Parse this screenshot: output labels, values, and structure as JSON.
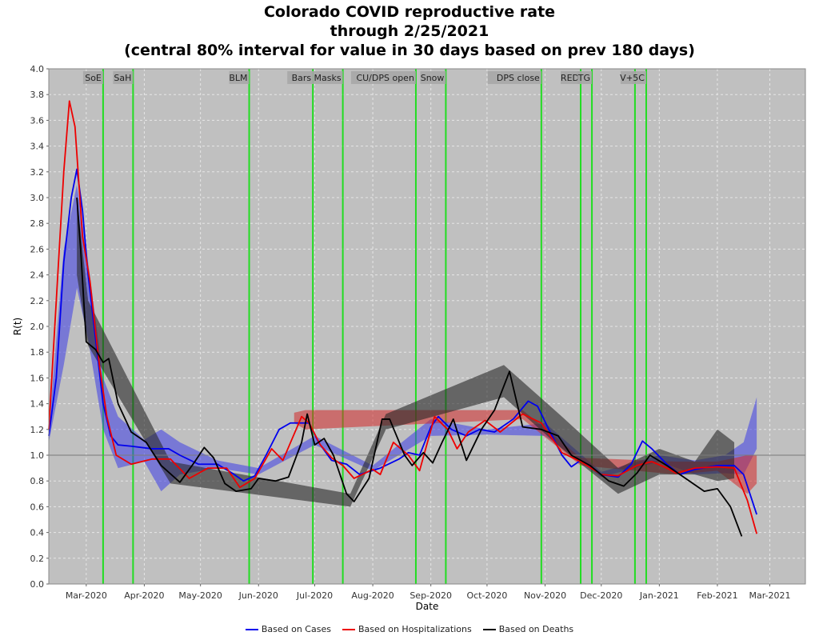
{
  "title_lines": [
    "Colorado COVID reproductive rate",
    "through 2/25/2021",
    "(central 80% interval for value in 30 days based on prev 180 days)"
  ],
  "chart_data": {
    "type": "line",
    "title": "Colorado COVID reproductive rate through 2/25/2021 (central 80% interval for value in 30 days based on prev 180 days)",
    "xlabel": "Date",
    "ylabel": "R(t)",
    "x_range": [
      "2020-02-10",
      "2021-03-20"
    ],
    "ylim": [
      0,
      4
    ],
    "y_ticks": [
      0.0,
      0.2,
      0.4,
      0.6,
      0.8,
      1.0,
      1.2,
      1.4,
      1.6,
      1.8,
      2.0,
      2.2,
      2.4,
      2.6,
      2.8,
      3.0,
      3.2,
      3.4,
      3.6,
      3.8,
      4.0
    ],
    "x_ticks": [
      {
        "date": "2020-03-01",
        "label": "Mar-2020"
      },
      {
        "date": "2020-04-01",
        "label": "Apr-2020"
      },
      {
        "date": "2020-05-01",
        "label": "May-2020"
      },
      {
        "date": "2020-06-01",
        "label": "Jun-2020"
      },
      {
        "date": "2020-07-01",
        "label": "Jul-2020"
      },
      {
        "date": "2020-08-01",
        "label": "Aug-2020"
      },
      {
        "date": "2020-09-01",
        "label": "Sep-2020"
      },
      {
        "date": "2020-10-01",
        "label": "Oct-2020"
      },
      {
        "date": "2020-11-01",
        "label": "Nov-2020"
      },
      {
        "date": "2020-12-01",
        "label": "Dec-2020"
      },
      {
        "date": "2021-01-01",
        "label": "Jan-2021"
      },
      {
        "date": "2021-02-01",
        "label": "Feb-2021"
      },
      {
        "date": "2021-03-01",
        "label": "Mar-2021"
      }
    ],
    "grid": true,
    "reference_line": 1.0,
    "legend_position": "bottom",
    "colors": {
      "plot_background": "#c0c0c0",
      "grid": "#e6e6e6",
      "event_line": "#22dd22",
      "event_label_bg": "#a6a6a6",
      "reference_line": "#7a7a7a"
    },
    "events": [
      {
        "date": "2020-03-10",
        "label": "SoE"
      },
      {
        "date": "2020-03-26",
        "label": "SaH"
      },
      {
        "date": "2020-05-27",
        "label": "BLM"
      },
      {
        "date": "2020-06-30",
        "label": "Bars"
      },
      {
        "date": "2020-07-16",
        "label": "Masks"
      },
      {
        "date": "2020-08-24",
        "label": "CU/DPS open"
      },
      {
        "date": "2020-09-09",
        "label": "Snow"
      },
      {
        "date": "2020-10-30",
        "label": "DPS close"
      },
      {
        "date": "2020-11-20",
        "label": "RED"
      },
      {
        "date": "2020-11-26",
        "label": "TG"
      },
      {
        "date": "2020-12-19",
        "label": "V+"
      },
      {
        "date": "2020-12-25",
        "label": "5C"
      }
    ],
    "series": [
      {
        "name": "Based on Cases",
        "color": "#0000ee",
        "band_color": "rgba(60,60,230,0.55)",
        "points": [
          [
            "2020-02-10",
            1.15
          ],
          [
            "2020-02-14",
            1.6
          ],
          [
            "2020-02-18",
            2.5
          ],
          [
            "2020-02-22",
            3.0
          ],
          [
            "2020-02-25",
            3.22
          ],
          [
            "2020-02-28",
            2.9
          ],
          [
            "2020-03-02",
            2.4
          ],
          [
            "2020-03-06",
            1.9
          ],
          [
            "2020-03-10",
            1.4
          ],
          [
            "2020-03-14",
            1.15
          ],
          [
            "2020-03-18",
            1.08
          ],
          [
            "2020-03-25",
            1.07
          ],
          [
            "2020-04-05",
            1.05
          ],
          [
            "2020-04-14",
            1.05
          ],
          [
            "2020-04-20",
            1.0
          ],
          [
            "2020-04-30",
            0.93
          ],
          [
            "2020-05-10",
            0.93
          ],
          [
            "2020-05-18",
            0.86
          ],
          [
            "2020-05-24",
            0.8
          ],
          [
            "2020-05-30",
            0.84
          ],
          [
            "2020-06-05",
            1.0
          ],
          [
            "2020-06-12",
            1.2
          ],
          [
            "2020-06-18",
            1.25
          ],
          [
            "2020-06-28",
            1.25
          ],
          [
            "2020-07-03",
            1.1
          ],
          [
            "2020-07-10",
            0.96
          ],
          [
            "2020-07-18",
            0.93
          ],
          [
            "2020-07-25",
            0.85
          ],
          [
            "2020-08-05",
            0.9
          ],
          [
            "2020-08-15",
            0.97
          ],
          [
            "2020-08-20",
            1.02
          ],
          [
            "2020-08-26",
            1.0
          ],
          [
            "2020-09-01",
            1.22
          ],
          [
            "2020-09-05",
            1.3
          ],
          [
            "2020-09-12",
            1.2
          ],
          [
            "2020-09-20",
            1.15
          ],
          [
            "2020-09-27",
            1.2
          ],
          [
            "2020-10-05",
            1.18
          ],
          [
            "2020-10-15",
            1.28
          ],
          [
            "2020-10-23",
            1.42
          ],
          [
            "2020-10-28",
            1.38
          ],
          [
            "2020-11-03",
            1.2
          ],
          [
            "2020-11-10",
            1.0
          ],
          [
            "2020-11-15",
            0.91
          ],
          [
            "2020-11-20",
            0.96
          ],
          [
            "2020-12-01",
            0.85
          ],
          [
            "2020-12-10",
            0.83
          ],
          [
            "2020-12-17",
            0.93
          ],
          [
            "2020-12-23",
            1.11
          ],
          [
            "2020-12-28",
            1.05
          ],
          [
            "2021-01-05",
            0.93
          ],
          [
            "2021-01-12",
            0.85
          ],
          [
            "2021-01-20",
            0.89
          ],
          [
            "2021-02-01",
            0.92
          ],
          [
            "2021-02-10",
            0.92
          ],
          [
            "2021-02-15",
            0.85
          ],
          [
            "2021-02-22",
            0.54
          ]
        ],
        "band": [
          [
            "2020-02-10",
            1.1,
            1.2
          ],
          [
            "2020-02-18",
            1.7,
            2.6
          ],
          [
            "2020-02-25",
            2.3,
            3.1
          ],
          [
            "2020-03-02",
            1.9,
            2.5
          ],
          [
            "2020-03-10",
            1.2,
            1.6
          ],
          [
            "2020-03-18",
            0.9,
            1.3
          ],
          [
            "2020-04-01",
            0.95,
            1.12
          ],
          [
            "2020-04-10",
            0.72,
            1.2
          ],
          [
            "2020-04-20",
            0.85,
            1.1
          ],
          [
            "2020-05-10",
            0.9,
            0.96
          ],
          [
            "2020-06-01",
            0.85,
            0.9
          ],
          [
            "2020-07-01",
            1.08,
            1.15
          ],
          [
            "2020-08-01",
            0.88,
            0.92
          ],
          [
            "2020-09-01",
            1.15,
            1.28
          ],
          [
            "2020-10-01",
            1.16,
            1.2
          ],
          [
            "2020-11-01",
            1.15,
            1.25
          ],
          [
            "2020-12-01",
            0.83,
            0.87
          ],
          [
            "2021-01-01",
            0.95,
            1.0
          ],
          [
            "2021-01-20",
            0.85,
            0.96
          ],
          [
            "2021-02-05",
            0.86,
            1.0
          ],
          [
            "2021-02-15",
            0.85,
            1.1
          ],
          [
            "2021-02-22",
            1.05,
            1.45
          ]
        ]
      },
      {
        "name": "Based on Hospitalizations",
        "color": "#ee0000",
        "band_color": "rgba(210,40,40,0.55)",
        "points": [
          [
            "2020-02-10",
            1.2
          ],
          [
            "2020-02-14",
            2.2
          ],
          [
            "2020-02-18",
            3.2
          ],
          [
            "2020-02-21",
            3.75
          ],
          [
            "2020-02-24",
            3.55
          ],
          [
            "2020-02-28",
            2.7
          ],
          [
            "2020-03-03",
            2.35
          ],
          [
            "2020-03-08",
            1.7
          ],
          [
            "2020-03-12",
            1.3
          ],
          [
            "2020-03-17",
            1.0
          ],
          [
            "2020-03-25",
            0.93
          ],
          [
            "2020-04-05",
            0.97
          ],
          [
            "2020-04-15",
            0.97
          ],
          [
            "2020-04-25",
            0.82
          ],
          [
            "2020-05-05",
            0.9
          ],
          [
            "2020-05-15",
            0.9
          ],
          [
            "2020-05-22",
            0.75
          ],
          [
            "2020-05-30",
            0.82
          ],
          [
            "2020-06-08",
            1.05
          ],
          [
            "2020-06-14",
            0.96
          ],
          [
            "2020-06-24",
            1.3
          ],
          [
            "2020-06-28",
            1.25
          ],
          [
            "2020-07-04",
            1.08
          ],
          [
            "2020-07-10",
            0.98
          ],
          [
            "2020-07-16",
            0.92
          ],
          [
            "2020-07-22",
            0.82
          ],
          [
            "2020-08-01",
            0.89
          ],
          [
            "2020-08-05",
            0.85
          ],
          [
            "2020-08-12",
            1.1
          ],
          [
            "2020-08-20",
            1.0
          ],
          [
            "2020-08-26",
            0.88
          ],
          [
            "2020-09-03",
            1.3
          ],
          [
            "2020-09-10",
            1.2
          ],
          [
            "2020-09-15",
            1.05
          ],
          [
            "2020-09-21",
            1.18
          ],
          [
            "2020-09-30",
            1.27
          ],
          [
            "2020-10-08",
            1.18
          ],
          [
            "2020-10-20",
            1.32
          ],
          [
            "2020-10-30",
            1.25
          ],
          [
            "2020-11-10",
            1.02
          ],
          [
            "2020-11-20",
            0.95
          ],
          [
            "2020-12-01",
            0.85
          ],
          [
            "2020-12-10",
            0.84
          ],
          [
            "2020-12-20",
            0.92
          ],
          [
            "2020-12-28",
            0.95
          ],
          [
            "2021-01-05",
            0.9
          ],
          [
            "2021-01-10",
            0.86
          ],
          [
            "2021-01-20",
            0.9
          ],
          [
            "2021-02-01",
            0.91
          ],
          [
            "2021-02-10",
            0.9
          ],
          [
            "2021-02-17",
            0.65
          ],
          [
            "2021-02-22",
            0.39
          ]
        ],
        "band": [
          [
            "2020-06-20",
            1.25,
            1.33
          ],
          [
            "2020-06-26",
            1.2,
            1.35
          ],
          [
            "2020-10-20",
            1.28,
            1.35
          ],
          [
            "2020-11-20",
            0.92,
            0.98
          ],
          [
            "2021-01-10",
            0.85,
            0.95
          ],
          [
            "2021-02-01",
            0.88,
            0.95
          ],
          [
            "2021-02-17",
            0.7,
            1.0
          ],
          [
            "2021-02-22",
            0.78,
            1.0
          ]
        ]
      },
      {
        "name": "Based on Deaths",
        "color": "#000000",
        "band_color": "rgba(40,40,40,0.6)",
        "points": [
          [
            "2020-02-25",
            3.0
          ],
          [
            "2020-02-27",
            2.6
          ],
          [
            "2020-03-01",
            1.88
          ],
          [
            "2020-03-06",
            1.82
          ],
          [
            "2020-03-10",
            1.72
          ],
          [
            "2020-03-13",
            1.75
          ],
          [
            "2020-03-18",
            1.4
          ],
          [
            "2020-03-25",
            1.18
          ],
          [
            "2020-04-02",
            1.1
          ],
          [
            "2020-04-10",
            0.92
          ],
          [
            "2020-04-20",
            0.79
          ],
          [
            "2020-04-28",
            0.95
          ],
          [
            "2020-05-03",
            1.06
          ],
          [
            "2020-05-08",
            0.98
          ],
          [
            "2020-05-14",
            0.78
          ],
          [
            "2020-05-20",
            0.72
          ],
          [
            "2020-05-28",
            0.74
          ],
          [
            "2020-06-01",
            0.82
          ],
          [
            "2020-06-10",
            0.8
          ],
          [
            "2020-06-17",
            0.83
          ],
          [
            "2020-06-24",
            1.1
          ],
          [
            "2020-06-27",
            1.32
          ],
          [
            "2020-07-01",
            1.08
          ],
          [
            "2020-07-06",
            1.13
          ],
          [
            "2020-07-11",
            1.0
          ],
          [
            "2020-07-18",
            0.7
          ],
          [
            "2020-07-22",
            0.64
          ],
          [
            "2020-07-30",
            0.82
          ],
          [
            "2020-08-06",
            1.28
          ],
          [
            "2020-08-10",
            1.28
          ],
          [
            "2020-08-18",
            1.0
          ],
          [
            "2020-08-22",
            0.92
          ],
          [
            "2020-08-28",
            1.02
          ],
          [
            "2020-09-02",
            0.94
          ],
          [
            "2020-09-07",
            1.1
          ],
          [
            "2020-09-13",
            1.28
          ],
          [
            "2020-09-20",
            0.96
          ],
          [
            "2020-09-28",
            1.2
          ],
          [
            "2020-10-05",
            1.35
          ],
          [
            "2020-10-13",
            1.65
          ],
          [
            "2020-10-20",
            1.22
          ],
          [
            "2020-10-30",
            1.2
          ],
          [
            "2020-11-08",
            1.15
          ],
          [
            "2020-11-15",
            1.0
          ],
          [
            "2020-11-25",
            0.92
          ],
          [
            "2020-12-05",
            0.8
          ],
          [
            "2020-12-13",
            0.76
          ],
          [
            "2020-12-20",
            0.86
          ],
          [
            "2020-12-27",
            1.0
          ],
          [
            "2021-01-05",
            0.92
          ],
          [
            "2021-01-15",
            0.82
          ],
          [
            "2021-01-25",
            0.72
          ],
          [
            "2021-02-01",
            0.74
          ],
          [
            "2021-02-08",
            0.6
          ],
          [
            "2021-02-14",
            0.37
          ]
        ],
        "band": [
          [
            "2020-02-25",
            2.4,
            3.0
          ],
          [
            "2020-03-02",
            1.85,
            2.2
          ],
          [
            "2020-04-15",
            0.78,
            0.95
          ],
          [
            "2020-07-20",
            0.6,
            0.7
          ],
          [
            "2020-08-08",
            1.2,
            1.32
          ],
          [
            "2020-10-10",
            1.45,
            1.7
          ],
          [
            "2020-11-10",
            1.05,
            1.3
          ],
          [
            "2020-12-10",
            0.7,
            0.9
          ],
          [
            "2021-01-01",
            0.85,
            1.05
          ],
          [
            "2021-01-20",
            0.85,
            0.95
          ],
          [
            "2021-02-01",
            0.8,
            1.2
          ],
          [
            "2021-02-10",
            0.82,
            1.1
          ]
        ]
      }
    ]
  }
}
